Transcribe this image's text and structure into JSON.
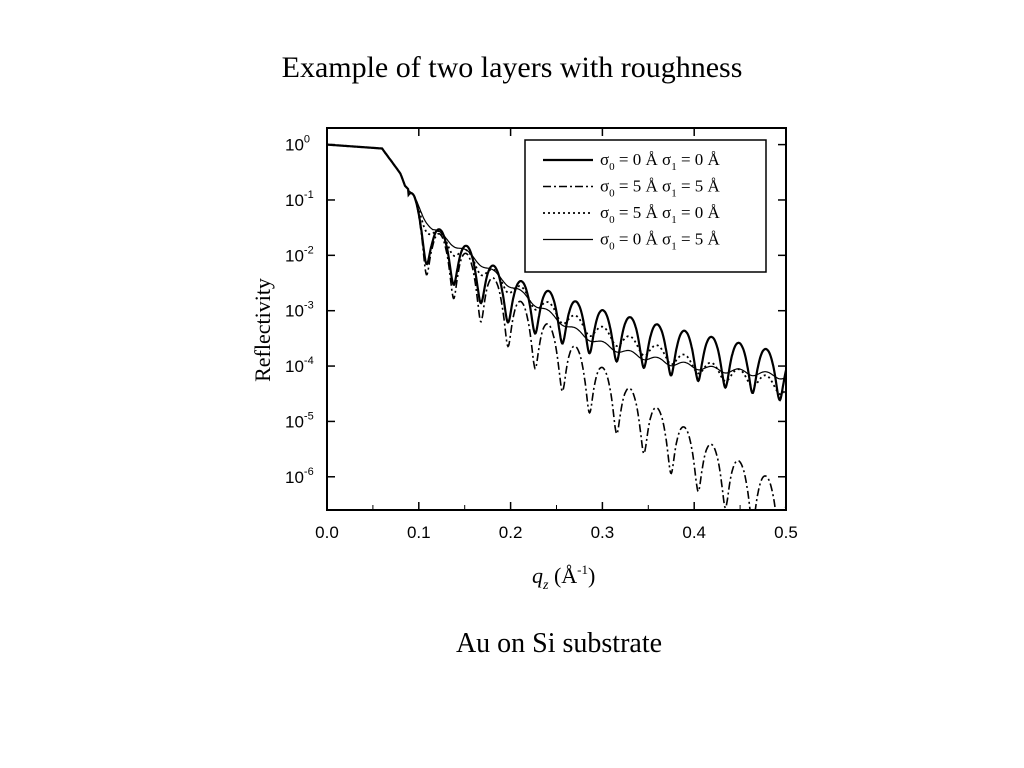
{
  "slide": {
    "title": "Example of two layers with roughness",
    "caption": "Au on Si substrate"
  },
  "chart_data": {
    "type": "line",
    "xlabel_symbol": "q",
    "xlabel_subscript": "z",
    "xlabel_unit_open": " (",
    "xlabel_unit_base": "Å",
    "xlabel_unit_exp": "-1",
    "xlabel_unit_close": ")",
    "ylabel": "Reflectivity",
    "xlim": [
      0.0,
      0.5
    ],
    "ylim": [
      2e-07,
      1.5
    ],
    "yscale": "log",
    "x_ticks": [
      {
        "value": 0.0,
        "label": "0.0"
      },
      {
        "value": 0.1,
        "label": "0.1"
      },
      {
        "value": 0.2,
        "label": "0.2"
      },
      {
        "value": 0.3,
        "label": "0.3"
      },
      {
        "value": 0.4,
        "label": "0.4"
      },
      {
        "value": 0.5,
        "label": "0.5"
      }
    ],
    "y_ticks": [
      {
        "value": 1,
        "exp": "0"
      },
      {
        "value": 0.1,
        "exp": "-1"
      },
      {
        "value": 0.01,
        "exp": "-2"
      },
      {
        "value": 0.001,
        "exp": "-3"
      },
      {
        "value": 0.0001,
        "exp": "-4"
      },
      {
        "value": 1e-05,
        "exp": "-5"
      },
      {
        "value": 1e-06,
        "exp": "-6"
      }
    ],
    "y_tick_base": "10",
    "legend_position": "top-right",
    "series": [
      {
        "sigma0": "0",
        "sigma1": "0",
        "dash": "solid",
        "x": [
          0.0,
          0.06,
          0.08,
          0.085,
          0.095,
          0.105,
          0.115,
          0.13,
          0.145,
          0.16,
          0.175,
          0.19,
          0.205,
          0.22,
          0.235,
          0.25,
          0.265,
          0.28,
          0.295,
          0.31,
          0.325,
          0.34,
          0.355,
          0.37,
          0.385,
          0.4,
          0.415,
          0.43,
          0.445,
          0.46,
          0.475,
          0.49,
          0.5
        ],
        "y": [
          1.0,
          0.85,
          0.3,
          0.18,
          0.12,
          0.06,
          0.035,
          0.025,
          0.018,
          0.012,
          0.008,
          0.005,
          0.0038,
          0.003,
          0.0025,
          0.002,
          0.0016,
          0.0013,
          0.0011,
          0.0009,
          0.0008,
          0.0007,
          0.0006,
          0.0005,
          0.00045,
          0.0004,
          0.00035,
          0.0003,
          0.00027,
          0.00024,
          0.00021,
          0.00018,
          0.00016
        ]
      },
      {
        "sigma0": "5",
        "sigma1": "5",
        "dash": "dashdot",
        "x": [
          0.0,
          0.06,
          0.08,
          0.085,
          0.095,
          0.105,
          0.115,
          0.13,
          0.145,
          0.16,
          0.175,
          0.19,
          0.205,
          0.22,
          0.235,
          0.25,
          0.265,
          0.28,
          0.295,
          0.31,
          0.325,
          0.34,
          0.355,
          0.37,
          0.385,
          0.4,
          0.415,
          0.43,
          0.445,
          0.46,
          0.475,
          0.49,
          0.5
        ],
        "y": [
          1.0,
          0.85,
          0.3,
          0.18,
          0.12,
          0.055,
          0.03,
          0.02,
          0.014,
          0.008,
          0.005,
          0.0028,
          0.0018,
          0.0011,
          0.0007,
          0.00042,
          0.00027,
          0.00017,
          0.00011,
          7e-05,
          4.5e-05,
          3e-05,
          2e-05,
          1.3e-05,
          8.8e-06,
          6e-06,
          4.2e-06,
          3e-06,
          2.1e-06,
          1.5e-06,
          1.1e-06,
          8e-07,
          6e-07
        ]
      },
      {
        "sigma0": "5",
        "sigma1": "0",
        "dash": "dotted",
        "x": [
          0.0,
          0.06,
          0.08,
          0.085,
          0.095,
          0.105,
          0.115,
          0.13,
          0.145,
          0.16,
          0.175,
          0.19,
          0.205,
          0.22,
          0.235,
          0.25,
          0.265,
          0.28,
          0.295,
          0.31,
          0.325,
          0.34,
          0.355,
          0.37,
          0.385,
          0.4,
          0.415,
          0.43,
          0.445,
          0.46,
          0.475,
          0.49,
          0.5
        ],
        "y": [
          1.0,
          0.85,
          0.3,
          0.18,
          0.12,
          0.058,
          0.033,
          0.022,
          0.015,
          0.01,
          0.0065,
          0.0045,
          0.0032,
          0.0022,
          0.0016,
          0.0012,
          0.0009,
          0.0007,
          0.00055,
          0.00045,
          0.00037,
          0.0003,
          0.00025,
          0.00021,
          0.00017,
          0.00014,
          0.00012,
          0.0001,
          9e-05,
          8e-05,
          7e-05,
          6e-05,
          5e-05
        ]
      },
      {
        "sigma0": "0",
        "sigma1": "5",
        "dash": "thin",
        "x": [
          0.0,
          0.06,
          0.08,
          0.085,
          0.095,
          0.105,
          0.115,
          0.13,
          0.145,
          0.16,
          0.175,
          0.19,
          0.205,
          0.22,
          0.235,
          0.25,
          0.265,
          0.28,
          0.295,
          0.31,
          0.325,
          0.34,
          0.355,
          0.37,
          0.385,
          0.4,
          0.415,
          0.43,
          0.445,
          0.46,
          0.475,
          0.49,
          0.5
        ],
        "y": [
          1.0,
          0.85,
          0.3,
          0.18,
          0.12,
          0.058,
          0.033,
          0.022,
          0.015,
          0.01,
          0.0065,
          0.0042,
          0.0028,
          0.0018,
          0.0012,
          0.0008,
          0.00055,
          0.0004,
          0.0003,
          0.00024,
          0.0002,
          0.00017,
          0.00015,
          0.00013,
          0.00012,
          0.00011,
          0.0001,
          9.5e-05,
          9e-05,
          8.5e-05,
          8e-05,
          7.5e-05,
          7e-05
        ]
      }
    ],
    "legend": {
      "sigma_symbol": "σ",
      "sub0": "0",
      "sub1": "1",
      "eq": " = ",
      "unit": " Å"
    }
  }
}
